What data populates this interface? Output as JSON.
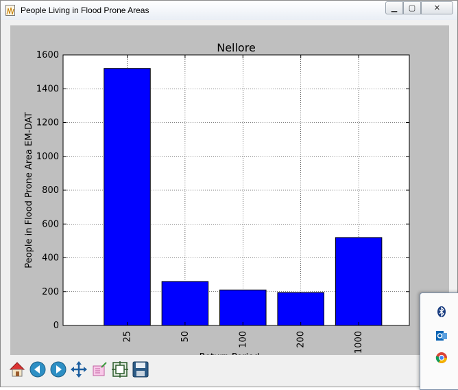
{
  "window": {
    "title": "People Living in Flood Prone Areas",
    "minimize_glyph": "▁",
    "maximize_glyph": "▢",
    "close_glyph": "✕"
  },
  "toolbar": {
    "items": [
      {
        "name": "home-icon"
      },
      {
        "name": "back-icon"
      },
      {
        "name": "forward-icon"
      },
      {
        "name": "pan-icon"
      },
      {
        "name": "zoom-rect-icon"
      },
      {
        "name": "subplots-icon"
      },
      {
        "name": "save-icon"
      }
    ]
  },
  "tray": {
    "items": [
      {
        "name": "bluetooth-icon"
      },
      {
        "name": "outlook-icon"
      },
      {
        "name": "chrome-icon"
      }
    ]
  },
  "chart_data": {
    "type": "bar",
    "title": "Nellore",
    "xlabel": "Return Period",
    "ylabel": "People in Flood Prone Area EM-DAT",
    "categories": [
      "25",
      "50",
      "100",
      "200",
      "1000"
    ],
    "values": [
      1520,
      260,
      210,
      195,
      520
    ],
    "ylim": [
      0,
      1600
    ],
    "yticks": [
      "0",
      "200",
      "400",
      "600",
      "800",
      "1000",
      "1200",
      "1400",
      "1600"
    ],
    "bar_color": "#0000ff",
    "grid": true,
    "legend": "none"
  }
}
